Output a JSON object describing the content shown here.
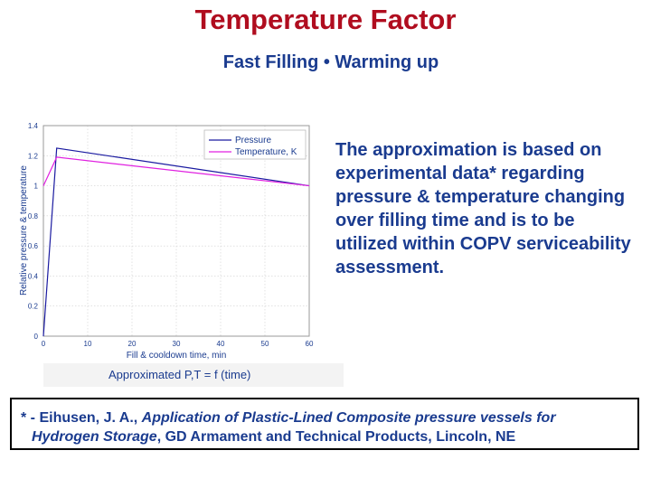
{
  "header": {
    "title": "Temperature Factor",
    "subtitle": "Fast Filling • Warming up"
  },
  "description": "The approximation is based on experimental data* regarding pressure & temperature changing over filling time and is to be utilized within COPV serviceability assessment.",
  "caption": "Approximated P,T = f (time)",
  "reference": {
    "prefix": "* - Eihusen, J. A., ",
    "title_part1": "Application of Plastic-Lined Composite pressure vessels for",
    "title_part2": "Hydrogen Storage",
    "suffix": ", GD Armament and Technical Products, Lincoln, NE"
  },
  "colors": {
    "title": "#b00d1f",
    "text": "#1a3b8f",
    "pressure": "#1a1aa0",
    "temperature": "#e020e0"
  },
  "chart_data": {
    "type": "line",
    "title": "",
    "xlabel": "Fill & cooldown time, min",
    "ylabel": "Relative pressure & temperature",
    "xlim": [
      0,
      60
    ],
    "ylim": [
      0,
      1.4
    ],
    "xticks": [
      0,
      10,
      20,
      30,
      40,
      50,
      60
    ],
    "yticks": [
      0,
      0.2,
      0.4,
      0.6,
      0.8,
      1,
      1.2,
      1.4
    ],
    "xtick_labels": [
      "0",
      "10",
      "20",
      "30",
      "40",
      "50",
      "60"
    ],
    "ytick_labels": [
      "0",
      "0.2",
      "0.4",
      "0.6",
      "0.8",
      "1",
      "1.2",
      "1.4"
    ],
    "grid": true,
    "legend_position": "top-right",
    "series": [
      {
        "name": "Pressure",
        "x": [
          0,
          3,
          60
        ],
        "y": [
          0,
          1.25,
          1.0
        ]
      },
      {
        "name": "Temperature, K",
        "x": [
          0,
          3,
          60
        ],
        "y": [
          1.0,
          1.19,
          1.0
        ]
      }
    ]
  }
}
